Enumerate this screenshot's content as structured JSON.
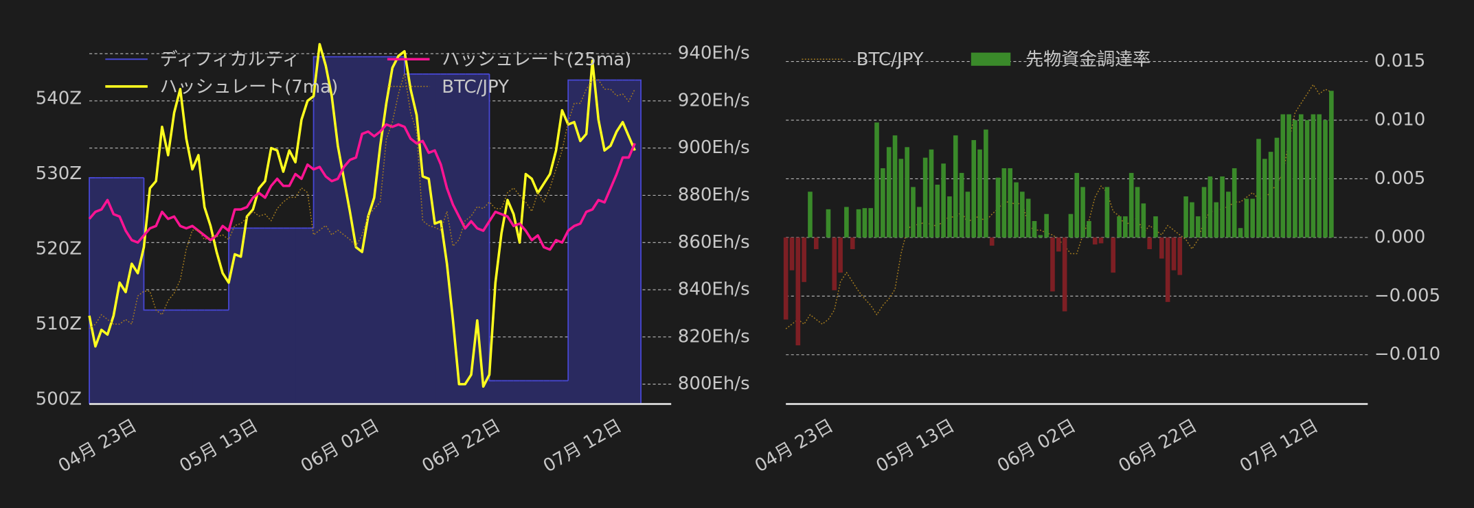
{
  "chart_data": [
    {
      "type": "combo",
      "x": [
        "04-16",
        "04-17",
        "04-18",
        "04-19",
        "04-20",
        "04-21",
        "04-22",
        "04-23",
        "04-24",
        "04-25",
        "04-26",
        "04-27",
        "04-28",
        "04-29",
        "04-30",
        "05-01",
        "05-02",
        "05-03",
        "05-04",
        "05-05",
        "05-06",
        "05-07",
        "05-08",
        "05-09",
        "05-10",
        "05-11",
        "05-12",
        "05-13",
        "05-14",
        "05-15",
        "05-16",
        "05-17",
        "05-18",
        "05-19",
        "05-20",
        "05-21",
        "05-22",
        "05-23",
        "05-24",
        "05-25",
        "05-26",
        "05-27",
        "05-28",
        "05-29",
        "05-30",
        "05-31",
        "06-01",
        "06-02",
        "06-03",
        "06-04",
        "06-05",
        "06-06",
        "06-07",
        "06-08",
        "06-09",
        "06-10",
        "06-11",
        "06-12",
        "06-13",
        "06-14",
        "06-15",
        "06-16",
        "06-17",
        "06-18",
        "06-19",
        "06-20",
        "06-21",
        "06-22",
        "06-23",
        "06-24",
        "06-25",
        "06-26",
        "06-27",
        "06-28",
        "06-29",
        "06-30",
        "07-01",
        "07-02",
        "07-03",
        "07-04",
        "07-05",
        "07-06",
        "07-07",
        "07-08",
        "07-09",
        "07-10",
        "07-11",
        "07-12",
        "07-13",
        "07-14",
        "07-15"
      ],
      "xlim": [
        "04-16",
        "07-21"
      ],
      "xticks": [
        {
          "value": "04-23",
          "label": "04月 23日"
        },
        {
          "value": "05-13",
          "label": "05月 13日"
        },
        {
          "value": "06-02",
          "label": "06月 02日"
        },
        {
          "value": "06-22",
          "label": "06月 22日"
        },
        {
          "value": "07-12",
          "label": "07月 12日"
        }
      ],
      "ylim": [
        499.4,
        548.4
      ],
      "yticks": [
        {
          "value": 500,
          "label": "500Z"
        },
        {
          "value": 510,
          "label": "510Z"
        },
        {
          "value": 520,
          "label": "520Z"
        },
        {
          "value": 530,
          "label": "530Z"
        },
        {
          "value": 540,
          "label": "540Z"
        }
      ],
      "y2lim": [
        791.6,
        947.6
      ],
      "y2ticks": [
        {
          "value": 800,
          "label": "800Eh/s"
        },
        {
          "value": 820,
          "label": "820Eh/s"
        },
        {
          "value": 840,
          "label": "840Eh/s"
        },
        {
          "value": 860,
          "label": "860Eh/s"
        },
        {
          "value": 880,
          "label": "880Eh/s"
        },
        {
          "value": 900,
          "label": "900Eh/s"
        },
        {
          "value": 920,
          "label": "920Eh/s"
        },
        {
          "value": 940,
          "label": "940Eh/s"
        }
      ],
      "y3lim": [
        9000000,
        11352000
      ],
      "y_axis_side": "left",
      "grid": "y2",
      "legend": "upper left",
      "legend_columns": 2,
      "series": [
        {
          "name": "ディフィカルティ",
          "type": "area",
          "axis": "y",
          "color": "#4848d6",
          "fill_color": "#2a2a60",
          "values": [
            529.5,
            529.5,
            529.5,
            529.5,
            529.5,
            529.5,
            529.5,
            529.5,
            529.5,
            511.9,
            511.9,
            511.9,
            511.9,
            511.9,
            511.9,
            511.9,
            511.9,
            511.9,
            511.9,
            511.9,
            511.9,
            511.9,
            511.9,
            522.8,
            522.8,
            522.8,
            522.8,
            522.8,
            522.8,
            522.8,
            522.8,
            522.8,
            522.8,
            522.8,
            522.8,
            522.8,
            522.8,
            545.6,
            545.6,
            545.6,
            545.6,
            545.6,
            545.6,
            545.6,
            545.6,
            545.6,
            545.6,
            545.6,
            545.6,
            545.6,
            545.6,
            545.6,
            543.3,
            543.3,
            543.3,
            543.3,
            543.3,
            543.3,
            543.3,
            543.3,
            543.3,
            543.3,
            543.3,
            543.3,
            543.3,
            543.3,
            502.5,
            502.5,
            502.5,
            502.5,
            502.5,
            502.5,
            502.5,
            502.5,
            502.5,
            502.5,
            502.5,
            502.5,
            502.5,
            542.5,
            542.5,
            542.5,
            542.5,
            542.5,
            542.5,
            542.5,
            542.5,
            542.5,
            542.5,
            542.5,
            542.5
          ]
        },
        {
          "name": "ハッシュレート(7ma)",
          "type": "line",
          "axis": "y2",
          "color": "#ffff1f",
          "style": "solid",
          "values": [
            829,
            816,
            823,
            821,
            829,
            843,
            839,
            851,
            847,
            858,
            883,
            886,
            909,
            897,
            915,
            925,
            904,
            891,
            897,
            875,
            867,
            856,
            847,
            843,
            855,
            854,
            871,
            874,
            883,
            886,
            900,
            899,
            890,
            899,
            894,
            912,
            920,
            922,
            944,
            935,
            922,
            901,
            887,
            873,
            858,
            856,
            871,
            879,
            901,
            919,
            934,
            939,
            941,
            925,
            914,
            888,
            887,
            868,
            869,
            851,
            827,
            800,
            800,
            804,
            827,
            799,
            804,
            843,
            864,
            878,
            872,
            860,
            889,
            887,
            881,
            885,
            889,
            899,
            916,
            910,
            911,
            903,
            906,
            937,
            912,
            899,
            901,
            907,
            911,
            905,
            899
          ]
        },
        {
          "name": "ハッシュレート(25ma)",
          "type": "line",
          "axis": "y2",
          "color": "#ff1493",
          "style": "solid",
          "values": [
            870,
            873,
            874,
            878,
            872,
            871,
            865,
            861,
            860,
            863,
            866,
            867,
            873,
            870,
            871,
            867,
            866,
            867,
            865,
            863,
            861,
            863,
            867,
            865,
            874,
            874,
            875,
            879,
            881,
            879,
            884,
            887,
            884,
            884,
            889,
            887,
            893,
            891,
            892,
            888,
            886,
            887,
            892,
            895,
            896,
            906,
            907,
            905,
            907,
            910,
            909,
            910,
            909,
            904,
            902,
            903,
            898,
            899,
            893,
            883,
            876,
            871,
            866,
            869,
            866,
            865,
            869,
            873,
            872,
            871,
            867,
            868,
            865,
            861,
            863,
            858,
            857,
            861,
            860,
            865,
            867,
            868,
            873,
            874,
            878,
            877,
            883,
            889,
            896,
            896,
            902
          ]
        },
        {
          "name": "BTC/JPY",
          "type": "line",
          "axis": "y3",
          "color": "#a67c1e",
          "style": "dotted",
          "values": [
            9480000,
            9510000,
            9570000,
            9540000,
            9510000,
            9510000,
            9540000,
            9510000,
            9690000,
            9720000,
            9720000,
            9600000,
            9570000,
            9660000,
            9708000,
            9792000,
            9990000,
            10110000,
            10110000,
            10050000,
            10068000,
            10068000,
            10080000,
            10050000,
            10140000,
            10152000,
            10188000,
            10230000,
            10200000,
            10212000,
            10170000,
            10248000,
            10290000,
            10320000,
            10320000,
            10380000,
            10350000,
            10080000,
            10110000,
            10140000,
            10080000,
            10110000,
            10080000,
            10050000,
            10008000,
            10080000,
            10200000,
            10248000,
            10290000,
            10692000,
            10800000,
            10980000,
            11112000,
            10860000,
            10740000,
            10170000,
            10140000,
            10128000,
            10110000,
            10230000,
            10008000,
            10050000,
            10170000,
            10200000,
            10260000,
            10248000,
            10290000,
            10248000,
            10248000,
            10350000,
            10380000,
            10332000,
            10290000,
            10230000,
            10350000,
            10290000,
            10380000,
            10500000,
            10620000,
            10800000,
            10920000,
            10920000,
            11010000,
            11070000,
            11070000,
            11010000,
            11010000,
            10968000,
            10980000,
            10932000,
            11010000
          ]
        }
      ]
    },
    {
      "type": "combo",
      "x": [
        "04-16",
        "04-17",
        "04-18",
        "04-19",
        "04-20",
        "04-21",
        "04-22",
        "04-23",
        "04-24",
        "04-25",
        "04-26",
        "04-27",
        "04-28",
        "04-29",
        "04-30",
        "05-01",
        "05-02",
        "05-03",
        "05-04",
        "05-05",
        "05-06",
        "05-07",
        "05-08",
        "05-09",
        "05-10",
        "05-11",
        "05-12",
        "05-13",
        "05-14",
        "05-15",
        "05-16",
        "05-17",
        "05-18",
        "05-19",
        "05-20",
        "05-21",
        "05-22",
        "05-23",
        "05-24",
        "05-25",
        "05-26",
        "05-27",
        "05-28",
        "05-29",
        "05-30",
        "05-31",
        "06-01",
        "06-02",
        "06-03",
        "06-04",
        "06-05",
        "06-06",
        "06-07",
        "06-08",
        "06-09",
        "06-10",
        "06-11",
        "06-12",
        "06-13",
        "06-14",
        "06-15",
        "06-16",
        "06-17",
        "06-18",
        "06-19",
        "06-20",
        "06-21",
        "06-22",
        "06-23",
        "06-24",
        "06-25",
        "06-26",
        "06-27",
        "06-28",
        "06-29",
        "06-30",
        "07-01",
        "07-02",
        "07-03",
        "07-04",
        "07-05",
        "07-06",
        "07-07",
        "07-08",
        "07-09",
        "07-10",
        "07-11",
        "07-12",
        "07-13",
        "07-14",
        "07-15"
      ],
      "xlim": [
        "04-16",
        "07-21"
      ],
      "xticks": [
        {
          "value": "04-23",
          "label": "04月 23日"
        },
        {
          "value": "05-13",
          "label": "05月 13日"
        },
        {
          "value": "06-02",
          "label": "06月 02日"
        },
        {
          "value": "06-22",
          "label": "06月 22日"
        },
        {
          "value": "07-12",
          "label": "07月 12日"
        }
      ],
      "ylim": [
        -0.0142,
        0.0172
      ],
      "yticks": [
        {
          "value": -0.01,
          "label": "−0.010"
        },
        {
          "value": -0.005,
          "label": "−0.005"
        },
        {
          "value": 0,
          "label": "0.000"
        },
        0.005,
        {
          "value": 0.01,
          "label": "0.010"
        },
        0.015
      ],
      "y2lim": [
        9000000,
        11352000
      ],
      "y_axis_side": "right",
      "grid": "y",
      "legend": "upper left",
      "legend_columns": 2,
      "series": [
        {
          "name": "BTC/JPY",
          "type": "line",
          "axis": "y2",
          "color": "#a67c1e",
          "style": "dotted",
          "values": [
            9480000,
            9510000,
            9540000,
            9510000,
            9570000,
            9540000,
            9510000,
            9540000,
            9600000,
            9780000,
            9840000,
            9780000,
            9720000,
            9672000,
            9630000,
            9570000,
            9630000,
            9672000,
            9732000,
            9960000,
            10110000,
            10152000,
            10140000,
            10170000,
            10140000,
            10140000,
            10164000,
            10200000,
            10188000,
            10230000,
            10152000,
            10200000,
            10188000,
            10170000,
            10212000,
            10248000,
            10290000,
            10290000,
            10272000,
            10290000,
            10140000,
            10110000,
            10110000,
            10092000,
            10080000,
            10050000,
            10008000,
            9960000,
            9960000,
            10080000,
            10170000,
            10320000,
            10392000,
            10350000,
            10230000,
            10200000,
            10140000,
            10170000,
            10188000,
            10092000,
            10140000,
            10110000,
            10080000,
            10140000,
            10110000,
            10080000,
            10050000,
            9990000,
            10050000,
            10170000,
            10230000,
            10230000,
            10248000,
            10260000,
            10290000,
            10290000,
            10320000,
            10350000,
            10308000,
            10320000,
            10350000,
            10410000,
            10470000,
            10680000,
            10860000,
            10920000,
            10980000,
            11040000,
            10980000,
            11010000,
            10992000
          ]
        },
        {
          "name": "先物資金調達率",
          "type": "bar",
          "axis": "y",
          "color": "#3a8a2a",
          "negative_color": "#7d1f24",
          "values": [
            -0.007,
            -0.0028,
            -0.0092,
            -0.0038,
            0.0039,
            -0.001,
            0,
            0.0024,
            -0.0045,
            -0.003,
            0.0026,
            -0.001,
            0.0024,
            0.0025,
            0.0025,
            0.0098,
            0.0059,
            0.0077,
            0.0087,
            0.0067,
            0.0077,
            0.0043,
            0.0026,
            0.0068,
            0.0075,
            0.0045,
            0.0063,
            0.0035,
            0.0087,
            0.0055,
            0.0039,
            0.0083,
            0.0075,
            0.0092,
            -0.0007,
            0.0051,
            0.0059,
            0.0059,
            0.0047,
            0.0039,
            0.0033,
            0.0014,
            0.0002,
            0.002,
            -0.0046,
            -0.0012,
            -0.0063,
            0.002,
            0.0055,
            0.0043,
            0.0014,
            -0.0006,
            -0.0005,
            0.0043,
            -0.003,
            0.0018,
            0.0018,
            0.0055,
            0.0043,
            0.0029,
            -0.001,
            0.0018,
            -0.0018,
            -0.0055,
            -0.0028,
            -0.0032,
            0.0035,
            0.003,
            0.0018,
            0.0043,
            0.0052,
            0.003,
            0.0052,
            0.0039,
            0.0059,
            0.0008,
            0.0033,
            0.0033,
            0.0084,
            0.0067,
            0.0073,
            0.0085,
            0.0105,
            0.0105,
            0.01,
            0.0105,
            0.01,
            0.0105,
            0.0105,
            0.01,
            0.0125
          ]
        }
      ]
    }
  ]
}
